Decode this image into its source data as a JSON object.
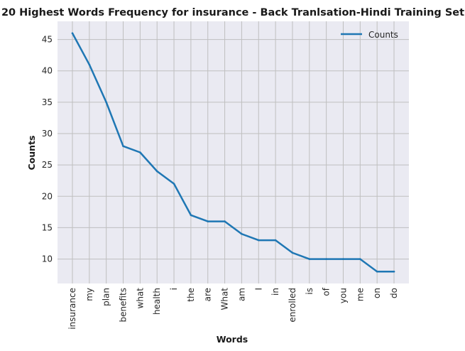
{
  "chart_data": {
    "type": "line",
    "title": "20 Highest Words Frequency for insurance - Back Tranlsation-Hindi Training Set",
    "xlabel": "Words",
    "ylabel": "Counts",
    "categories": [
      "insurance",
      "my",
      "plan",
      "benefits",
      "what",
      "health",
      "i",
      "the",
      "are",
      "What",
      "am",
      "I",
      "in",
      "enrolled",
      "is",
      "of",
      "you",
      "me",
      "on",
      "do"
    ],
    "series": [
      {
        "name": "Counts",
        "values": [
          46,
          41,
          35,
          28,
          27,
          24,
          22,
          17,
          16,
          16,
          14,
          13,
          13,
          11,
          10,
          10,
          10,
          10,
          8,
          8
        ]
      }
    ],
    "ylim": [
      6.1,
      47.9
    ],
    "yticks": [
      10,
      15,
      20,
      25,
      30,
      35,
      40,
      45
    ],
    "grid": true,
    "legend_position": "top-right",
    "colors": {
      "line": "#1f77b4",
      "plot_bg": "#eaeaf2",
      "grid": "#bfbfbf"
    }
  }
}
